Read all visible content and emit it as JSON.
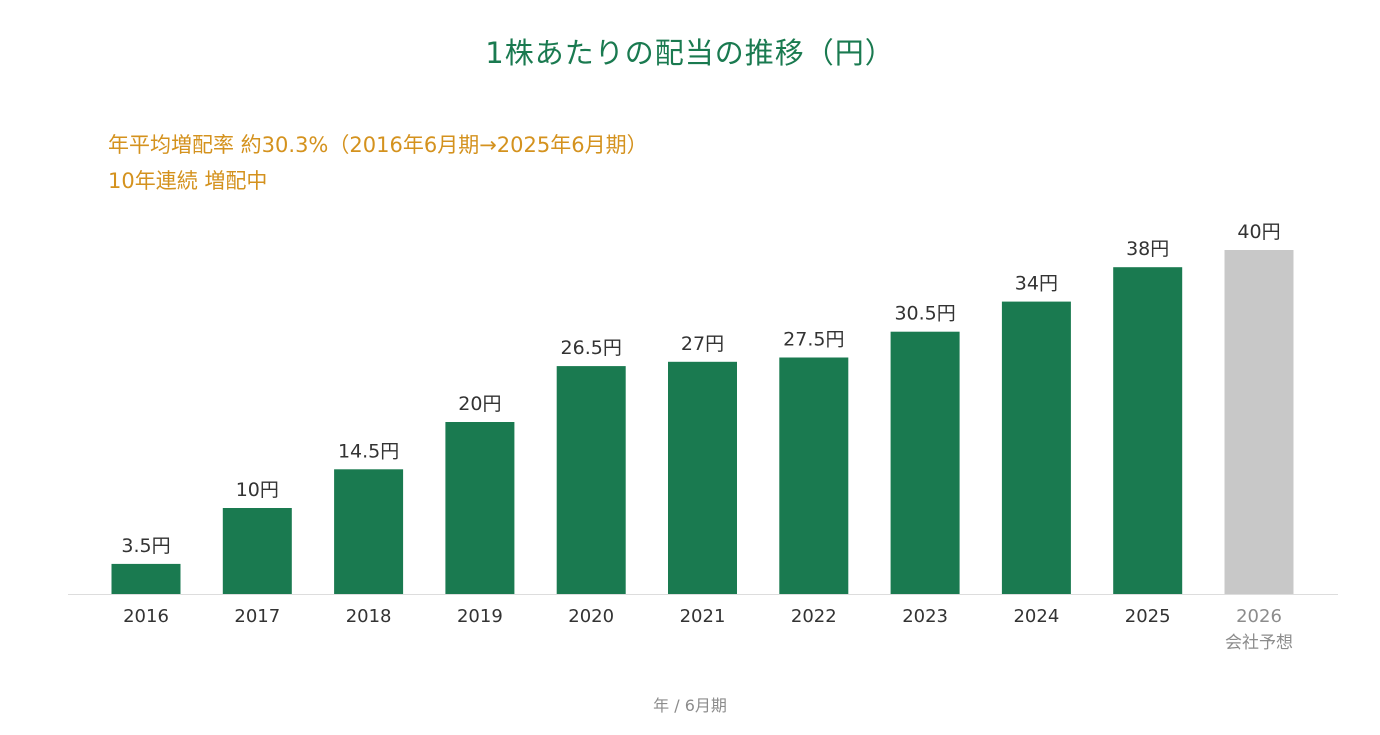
{
  "chart_data": {
    "type": "bar",
    "title": "1株あたりの配当の推移（円）",
    "annotations": [
      "年平均増配率 約30.3%（2016年6月期→2025年6月期）",
      "10年連続 増配中"
    ],
    "xlabel": "年 / 6月期",
    "ylabel": "",
    "categories": [
      "2016",
      "2017",
      "2018",
      "2019",
      "2020",
      "2021",
      "2022",
      "2023",
      "2024",
      "2025",
      "2026"
    ],
    "category_sublabels": [
      "",
      "",
      "",
      "",
      "",
      "",
      "",
      "",
      "",
      "",
      "会社予想"
    ],
    "values": [
      3.5,
      10,
      14.5,
      20,
      26.5,
      27,
      27.5,
      30.5,
      34,
      38,
      40
    ],
    "value_labels": [
      "3.5円",
      "10円",
      "14.5円",
      "20円",
      "26.5円",
      "27円",
      "27.5円",
      "30.5円",
      "34円",
      "38円",
      "40円"
    ],
    "forecast": [
      false,
      false,
      false,
      false,
      false,
      false,
      false,
      false,
      false,
      false,
      true
    ],
    "ylim": [
      0,
      40
    ],
    "grid": false,
    "colors": {
      "actual": "#1a7a50",
      "forecast": "#c8c8c8",
      "title": "#1a7a50",
      "annotation": "#d4921e",
      "axis": "#dddddd"
    }
  }
}
